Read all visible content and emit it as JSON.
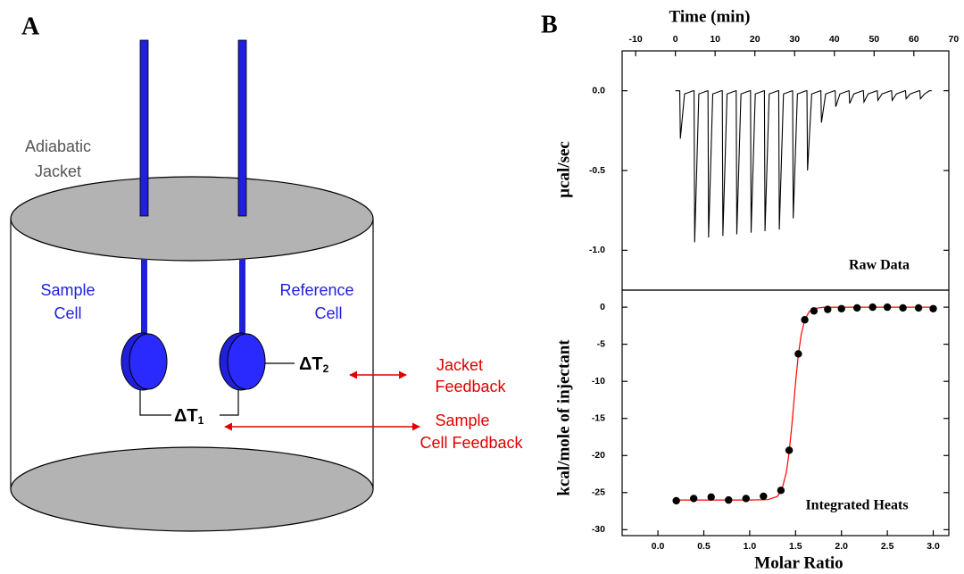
{
  "panel_a": {
    "label": "A",
    "jacket_label": [
      "Adiabatic",
      "Jacket"
    ],
    "sample_cell": [
      "Sample",
      "Cell"
    ],
    "reference_cell": [
      "Reference",
      "Cell"
    ],
    "delta_t2": {
      "symbol": "ΔT",
      "subscript": "2"
    },
    "delta_t1": {
      "symbol": "ΔT",
      "subscript": "1"
    },
    "jacket_feedback": [
      "Jacket",
      "Feedback"
    ],
    "sample_feedback": [
      "Sample",
      "Cell Feedback"
    ]
  },
  "panel_b_label": "B",
  "chart_data": [
    {
      "type": "line",
      "x_label": "Time (min)",
      "y_label": "µcal/sec",
      "annotation": "Raw Data",
      "color": "#000000",
      "xlim": [
        -13.4,
        68.8
      ],
      "xticks": [
        -10,
        0,
        10,
        20,
        30,
        40,
        50,
        60,
        70
      ],
      "ylim": [
        -1.25,
        0.25
      ],
      "yticks": [
        {
          "value": 0,
          "label": "0.0"
        },
        {
          "value": -0.5,
          "label": "-0.5"
        },
        {
          "value": -1,
          "label": "-1.0"
        }
      ],
      "x": [
        0,
        1.1,
        1.25,
        2.3,
        4.5,
        4.7,
        4.85,
        5.9,
        8.1,
        8.2,
        8.35,
        9.4,
        11.6,
        11.8,
        11.95,
        13.0,
        15.2,
        15.3,
        15.45,
        16.5,
        18.7,
        18.9,
        19.05,
        20.1,
        22.3,
        22.4,
        22.55,
        23.6,
        25.8,
        26.0,
        26.15,
        27.2,
        29.4,
        29.5,
        29.65,
        30.7,
        32.9,
        33.1,
        33.25,
        34.3,
        36.5,
        36.6,
        36.75,
        37.8,
        40.0,
        40.2,
        40.35,
        41.4,
        43.6,
        43.7,
        43.85,
        44.9,
        47.1,
        47.3,
        47.45,
        48.5,
        50.7,
        50.8,
        50.95,
        52.0,
        54.2,
        54.4,
        54.55,
        55.6,
        57.8,
        57.9,
        58.05,
        59.1,
        61.3,
        61.5,
        61.65,
        62.7,
        63.9,
        64.5
      ],
      "values": [
        0,
        0,
        -0.3,
        -0.02,
        0,
        0,
        -0.95,
        -0.02,
        0,
        0,
        -0.92,
        -0.02,
        0,
        0,
        -0.91,
        -0.02,
        0,
        0,
        -0.9,
        -0.02,
        0,
        0,
        -0.89,
        -0.02,
        0,
        0,
        -0.88,
        -0.02,
        0,
        0,
        -0.87,
        -0.02,
        0,
        0,
        -0.8,
        -0.02,
        0,
        0,
        -0.5,
        -0.02,
        0,
        0,
        -0.2,
        -0.02,
        0,
        0,
        -0.1,
        -0.02,
        0,
        0,
        -0.08,
        -0.02,
        0,
        0,
        -0.07,
        -0.02,
        0,
        0,
        -0.06,
        -0.02,
        0,
        0,
        -0.06,
        -0.02,
        0,
        0,
        -0.05,
        -0.02,
        0,
        0,
        -0.05,
        -0.02,
        0,
        0
      ]
    },
    {
      "type": "scatter",
      "x_label": "Molar Ratio",
      "y_label": "kcal/mole of injectant",
      "annotation": "Integrated Heats",
      "xlim": [
        -0.39,
        3.17
      ],
      "xticks": [
        {
          "value": 0,
          "label": "0.0"
        },
        0.5,
        {
          "value": 1,
          "label": "1.0"
        },
        1.5,
        {
          "value": 2,
          "label": "2.0"
        },
        2.5,
        {
          "value": 3,
          "label": "3.0"
        }
      ],
      "ylim": [
        -30.8,
        2.3
      ],
      "yticks": [
        0,
        -5,
        -10,
        -15,
        -20,
        -25,
        -30
      ],
      "series": [
        {
          "type": "scatter",
          "color": "#000000",
          "x": [
            0.2,
            0.39,
            0.58,
            0.77,
            0.96,
            1.15,
            1.34,
            1.43,
            1.53,
            1.6,
            1.7,
            1.85,
            2.0,
            2.17,
            2.34,
            2.5,
            2.67,
            2.84,
            3.0
          ],
          "values": [
            -26.1,
            -25.8,
            -25.6,
            -26.0,
            -25.8,
            -25.5,
            -24.7,
            -19.3,
            -6.3,
            -1.7,
            -0.5,
            -0.3,
            -0.2,
            -0.1,
            0,
            0,
            -0.1,
            -0.1,
            -0.2
          ]
        },
        {
          "type": "line",
          "color": "#ff0000",
          "x": [
            0.2,
            0.6,
            1.0,
            1.2,
            1.3,
            1.35,
            1.4,
            1.43,
            1.46,
            1.48,
            1.5,
            1.53,
            1.56,
            1.6,
            1.65,
            1.7,
            1.8,
            2.0,
            2.5,
            3.0
          ],
          "values": [
            -26.0,
            -26.0,
            -26.0,
            -25.95,
            -25.53,
            -24.63,
            -22.24,
            -19.56,
            -15.84,
            -13.0,
            -10.16,
            -6.44,
            -3.76,
            -1.69,
            -0.58,
            -0.19,
            -0.02,
            0,
            0,
            0
          ]
        }
      ]
    }
  ]
}
